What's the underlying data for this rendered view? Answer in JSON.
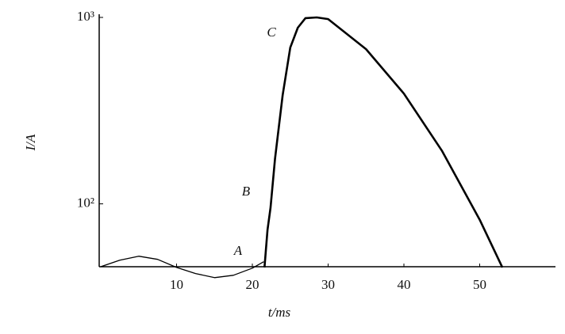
{
  "chart_data": {
    "type": "line",
    "xlabel": "t/ms",
    "ylabel": "I/A",
    "xlim": [
      0,
      60
    ],
    "xticks": [
      10,
      20,
      30,
      40,
      50
    ],
    "ylim": [
      46,
      1000
    ],
    "yscale": "log",
    "yticks": [
      {
        "value": 100,
        "label": "10²"
      },
      {
        "value": 1000,
        "label": "10³"
      }
    ],
    "annotations": [
      "A",
      "B",
      "C"
    ],
    "series": [
      {
        "color": "#000000",
        "width": 1.3,
        "x": [
          0,
          2.5,
          5,
          7.5,
          10,
          12.5,
          15,
          17.5,
          20,
          21.5
        ],
        "values": [
          46,
          49.9,
          52.4,
          50.4,
          45.6,
          42.3,
          40.2,
          41.4,
          45.2,
          48.9
        ]
      },
      {
        "color": "#000000",
        "width": 2.6,
        "x": [
          21.6,
          22.0,
          22.4,
          23,
          24,
          25,
          26,
          27,
          28.5,
          30,
          35,
          40,
          45,
          50,
          53
        ],
        "values": [
          45.6,
          72.4,
          95.2,
          175,
          383,
          689,
          881,
          991,
          1000,
          980,
          676,
          390,
          193,
          82.2,
          45.6
        ]
      }
    ]
  }
}
